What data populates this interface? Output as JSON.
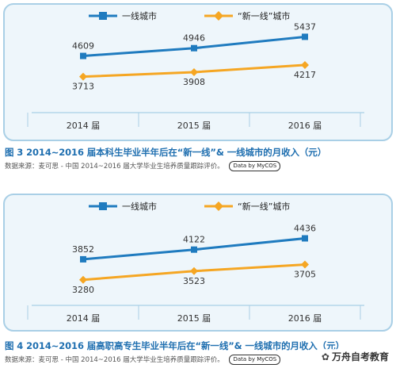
{
  "colors": {
    "first_tier": "#1f7bbf",
    "new_first_tier": "#f5a623",
    "frame": "#a9cfe6",
    "panel_fill": "#eef6fb",
    "caption": "#1f6fb0"
  },
  "chart_data": [
    {
      "type": "line",
      "categories": [
        "2014 届",
        "2015 届",
        "2016 届"
      ],
      "series": [
        {
          "name": "一线城市",
          "values": [
            4609,
            4946,
            5437
          ],
          "color": "#1f7bbf",
          "marker": "square"
        },
        {
          "name": "“新一线”城市",
          "values": [
            3713,
            3908,
            4217
          ],
          "color": "#f5a623",
          "marker": "diamond"
        }
      ],
      "title": "图 3  2014~2016 届本科生毕业半年后在“新一线”& 一线城市的月收入（元）",
      "source": "数据来源：麦可思 - 中国 2014~2016 届大学毕业生培养质量跟踪评价。",
      "badge": "Data by MyCOS",
      "legend_position": "top",
      "ylim": [
        2500,
        6000
      ],
      "grid": false
    },
    {
      "type": "line",
      "categories": [
        "2014 届",
        "2015 届",
        "2016 届"
      ],
      "series": [
        {
          "name": "一线城市",
          "values": [
            3852,
            4122,
            4436
          ],
          "color": "#1f7bbf",
          "marker": "square"
        },
        {
          "name": "“新一线”城市",
          "values": [
            3280,
            3523,
            3705
          ],
          "color": "#f5a623",
          "marker": "diamond"
        }
      ],
      "title": "图 4  2014~2016 届高职高专生毕业半年后在“新一线”& 一线城市的月收入（元）",
      "source": "数据来源：麦可思 - 中国 2014~2016 届大学毕业生培养质量跟踪评价。",
      "badge": "Data by MyCOS",
      "legend_position": "top",
      "ylim": [
        2700,
        5000
      ],
      "grid": false
    }
  ],
  "watermark": "万舟自考教育"
}
